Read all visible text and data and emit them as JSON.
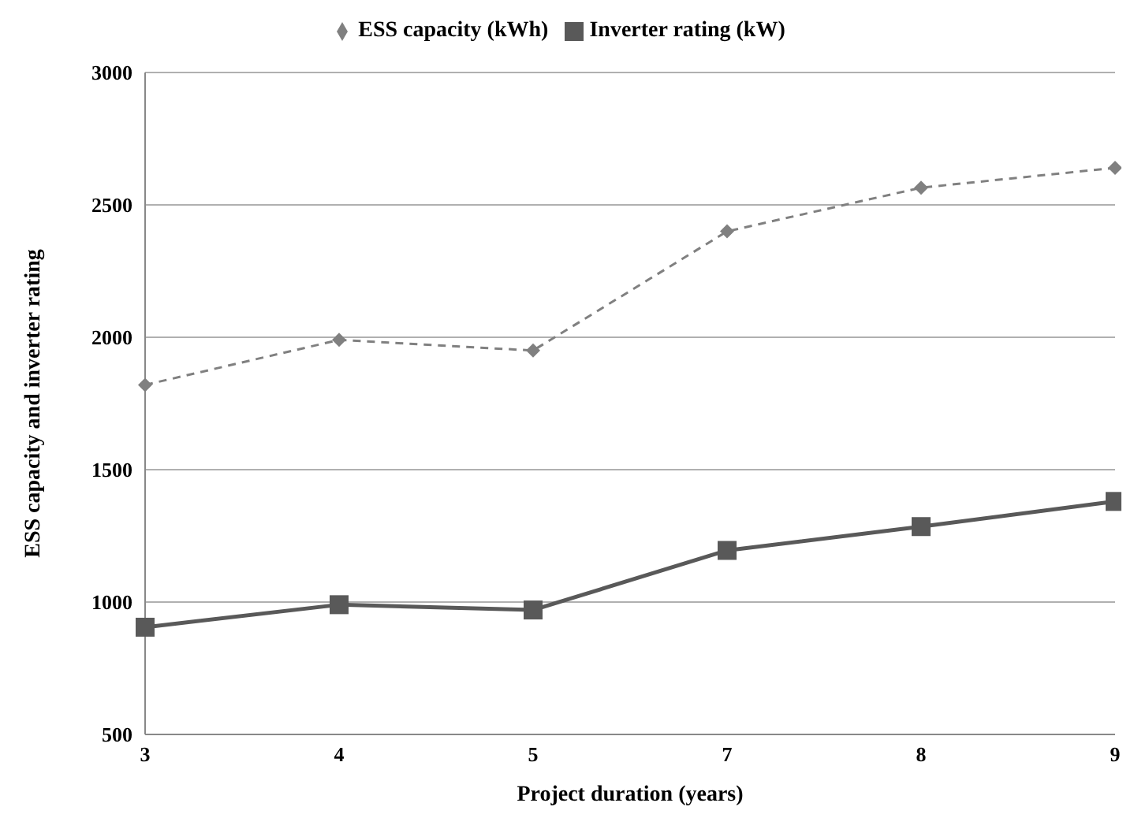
{
  "chart_data": {
    "type": "line",
    "xlabel": "Project duration (years)",
    "ylabel": "ESS capacity and inverter rating",
    "categories": [
      "3",
      "4",
      "5",
      "7",
      "8",
      "9"
    ],
    "series": [
      {
        "name": "ESS capacity (kWh)",
        "color": "#808080",
        "values": [
          1820,
          1990,
          1950,
          2400,
          2565,
          2640
        ],
        "marker": "diamond",
        "line_style": "dashed"
      },
      {
        "name": "Inverter rating (kW)",
        "color": "#595959",
        "values": [
          905,
          990,
          970,
          1195,
          1285,
          1380
        ],
        "marker": "square",
        "line_style": "solid"
      }
    ],
    "ylim": [
      500,
      3000
    ],
    "yticks": [
      500,
      1000,
      1500,
      2000,
      2500,
      3000
    ],
    "grid": "y",
    "legend": "top"
  }
}
